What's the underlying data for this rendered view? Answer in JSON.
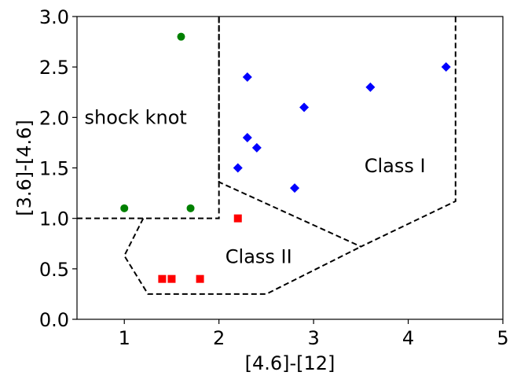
{
  "chart_data": {
    "type": "scatter",
    "xlabel": "[4.6]-[12]",
    "ylabel": "[3.6]-[4.6]",
    "xlim": [
      0.5,
      5.0
    ],
    "ylim": [
      0.0,
      3.0
    ],
    "xticks": [
      1,
      2,
      3,
      4,
      5
    ],
    "yticks": [
      0.0,
      0.5,
      1.0,
      1.5,
      2.0,
      2.5,
      3.0
    ],
    "grid": false,
    "series": [
      {
        "marker": "circle",
        "color": "#008000",
        "points": [
          {
            "x": 1.6,
            "y": 2.8
          },
          {
            "x": 1.0,
            "y": 1.1
          },
          {
            "x": 1.7,
            "y": 1.1
          }
        ]
      },
      {
        "marker": "diamond",
        "color": "#0000ff",
        "points": [
          {
            "x": 2.3,
            "y": 2.4
          },
          {
            "x": 2.9,
            "y": 2.1
          },
          {
            "x": 3.6,
            "y": 2.3
          },
          {
            "x": 4.4,
            "y": 2.5
          },
          {
            "x": 2.3,
            "y": 1.8
          },
          {
            "x": 2.4,
            "y": 1.7
          },
          {
            "x": 2.2,
            "y": 1.5
          },
          {
            "x": 2.8,
            "y": 1.3
          }
        ]
      },
      {
        "marker": "square",
        "color": "#ff0000",
        "points": [
          {
            "x": 2.2,
            "y": 1.0
          },
          {
            "x": 1.4,
            "y": 0.4
          },
          {
            "x": 1.5,
            "y": 0.4
          },
          {
            "x": 1.8,
            "y": 0.4
          }
        ]
      }
    ],
    "region_boundaries": [
      {
        "name": "shock-knot-boundary",
        "points": [
          [
            0.5,
            1.0
          ],
          [
            2.0,
            1.0
          ],
          [
            2.0,
            3.0
          ]
        ]
      },
      {
        "name": "class-i-boundary",
        "points": [
          [
            2.0,
            3.0
          ],
          [
            2.0,
            1.36
          ],
          [
            3.5,
            0.72
          ],
          [
            4.5,
            1.17
          ],
          [
            4.5,
            3.0
          ]
        ]
      },
      {
        "name": "class-ii-boundary",
        "points": [
          [
            1.2,
            1.0
          ],
          [
            1.0,
            0.63
          ],
          [
            1.25,
            0.25
          ],
          [
            2.5,
            0.25
          ],
          [
            3.5,
            0.72
          ]
        ]
      }
    ],
    "annotations": [
      {
        "text": "shock knot",
        "x": 1.12,
        "y": 2.0
      },
      {
        "text": "Class I",
        "x": 3.86,
        "y": 1.52
      },
      {
        "text": "Class II",
        "x": 2.42,
        "y": 0.62
      }
    ]
  }
}
